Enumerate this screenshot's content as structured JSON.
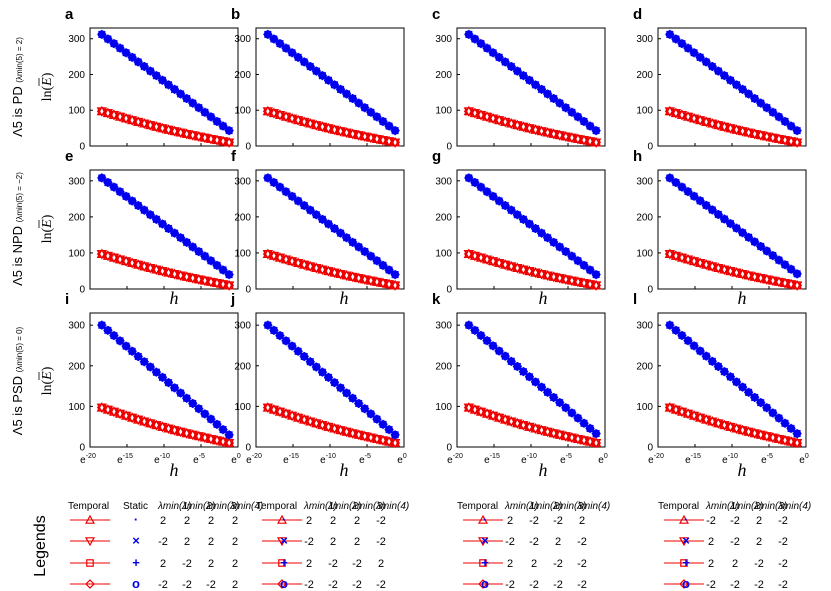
{
  "figure": {
    "panel_letters": [
      "a",
      "b",
      "c",
      "d",
      "e",
      "f",
      "g",
      "h",
      "i",
      "j",
      "k",
      "l"
    ],
    "x_axis_label": "h",
    "y_axis_label": "ln(E)",
    "row_labels": [
      {
        "main": "Λ5 is PD",
        "cond": "(λmin(5) = 2)"
      },
      {
        "main": "Λ5 is NPD",
        "cond": "(λmin(5) = −2)"
      },
      {
        "main": "Λ5 is PSD",
        "cond": "(λmin(5) = 0)"
      }
    ],
    "colors": {
      "static": "#0000ee",
      "temporal": "#ee0000"
    }
  },
  "chart_data": {
    "type": "scatter",
    "x_scale": "natural-log",
    "x_tick_exponents": [
      -20,
      -15,
      -10,
      -5,
      0
    ],
    "x_tick_base": "e",
    "xlim": [
      -20,
      0
    ],
    "ylim": [
      0,
      330
    ],
    "y_ticks": [
      0,
      100,
      200,
      300
    ],
    "series_description": "x values are exponents k in h = e^k",
    "panels": [
      {
        "letter": "a",
        "blue": {
          "x": [
            -18.4,
            -1.2
          ],
          "y": [
            312,
            43
          ]
        },
        "red": {
          "x": [
            -18.4,
            -1.2
          ],
          "y": [
            97,
            10
          ]
        }
      },
      {
        "letter": "b",
        "blue": {
          "x": [
            -18.4,
            -1.2
          ],
          "y": [
            312,
            43
          ]
        },
        "red": {
          "x": [
            -18.4,
            -1.2
          ],
          "y": [
            97,
            10
          ]
        }
      },
      {
        "letter": "c",
        "blue": {
          "x": [
            -18.4,
            -1.2
          ],
          "y": [
            312,
            43
          ]
        },
        "red": {
          "x": [
            -18.4,
            -1.2
          ],
          "y": [
            97,
            10
          ]
        }
      },
      {
        "letter": "d",
        "blue": {
          "x": [
            -18.4,
            -1.2
          ],
          "y": [
            312,
            43
          ]
        },
        "red": {
          "x": [
            -18.4,
            -1.2
          ],
          "y": [
            97,
            10
          ]
        }
      },
      {
        "letter": "e",
        "blue": {
          "x": [
            -18.4,
            -1.2
          ],
          "y": [
            308,
            40
          ]
        },
        "red": {
          "x": [
            -18.4,
            -1.2
          ],
          "y": [
            97,
            10
          ]
        }
      },
      {
        "letter": "f",
        "blue": {
          "x": [
            -18.4,
            -1.2
          ],
          "y": [
            308,
            40
          ]
        },
        "red": {
          "x": [
            -18.4,
            -1.2
          ],
          "y": [
            97,
            10
          ]
        }
      },
      {
        "letter": "g",
        "blue": {
          "x": [
            -18.4,
            -1.2
          ],
          "y": [
            308,
            40
          ]
        },
        "red": {
          "x": [
            -18.4,
            -1.2
          ],
          "y": [
            97,
            10
          ]
        }
      },
      {
        "letter": "h",
        "blue": {
          "x": [
            -18.4,
            -1.2
          ],
          "y": [
            308,
            42
          ]
        },
        "red": {
          "x": [
            -18.4,
            -1.2
          ],
          "y": [
            97,
            10
          ]
        }
      },
      {
        "letter": "i",
        "blue": {
          "x": [
            -18.4,
            -1.2
          ],
          "y": [
            300,
            30
          ]
        },
        "red": {
          "x": [
            -18.4,
            -1.2
          ],
          "y": [
            97,
            10
          ]
        }
      },
      {
        "letter": "j",
        "blue": {
          "x": [
            -18.4,
            -1.2
          ],
          "y": [
            300,
            30
          ]
        },
        "red": {
          "x": [
            -18.4,
            -1.2
          ],
          "y": [
            97,
            10
          ]
        }
      },
      {
        "letter": "k",
        "blue": {
          "x": [
            -18.4,
            -1.2
          ],
          "y": [
            300,
            33
          ]
        },
        "red": {
          "x": [
            -18.4,
            -1.2
          ],
          "y": [
            97,
            10
          ]
        }
      },
      {
        "letter": "l",
        "blue": {
          "x": [
            -18.4,
            -1.2
          ],
          "y": [
            300,
            33
          ]
        },
        "red": {
          "x": [
            -18.4,
            -1.2
          ],
          "y": [
            97,
            10
          ]
        }
      }
    ],
    "points_per_series": 22
  },
  "legends": {
    "title": "Legends",
    "header": {
      "temporal": "Temporal",
      "static": "Static",
      "lam": [
        "λmin(1)",
        "λmin(2)",
        "λmin(3)",
        "λmin(4)"
      ]
    },
    "temporal_markers": [
      "triangle-up",
      "triangle-down",
      "square",
      "diamond"
    ],
    "static_markers": [
      "·",
      "×",
      "+",
      "o"
    ],
    "blocks": [
      [
        [
          "2",
          "2",
          "2",
          "2"
        ],
        [
          "-2",
          "2",
          "2",
          "2"
        ],
        [
          "2",
          "-2",
          "2",
          "2"
        ],
        [
          "-2",
          "-2",
          "-2",
          "2"
        ]
      ],
      [
        [
          "2",
          "2",
          "2",
          "-2"
        ],
        [
          "-2",
          "2",
          "2",
          "-2"
        ],
        [
          "2",
          "-2",
          "-2",
          "2"
        ],
        [
          "-2",
          "-2",
          "-2",
          "-2"
        ]
      ],
      [
        [
          "2",
          "-2",
          "-2",
          "2"
        ],
        [
          "-2",
          "-2",
          "2",
          "-2"
        ],
        [
          "2",
          "2",
          "-2",
          "-2"
        ],
        [
          "-2",
          "-2",
          "-2",
          "-2"
        ]
      ],
      [
        [
          "-2",
          "-2",
          "2",
          "-2"
        ],
        [
          "2",
          "-2",
          "2",
          "-2"
        ],
        [
          "2",
          "2",
          "-2",
          "-2"
        ],
        [
          "-2",
          "-2",
          "-2",
          "-2"
        ]
      ]
    ]
  }
}
